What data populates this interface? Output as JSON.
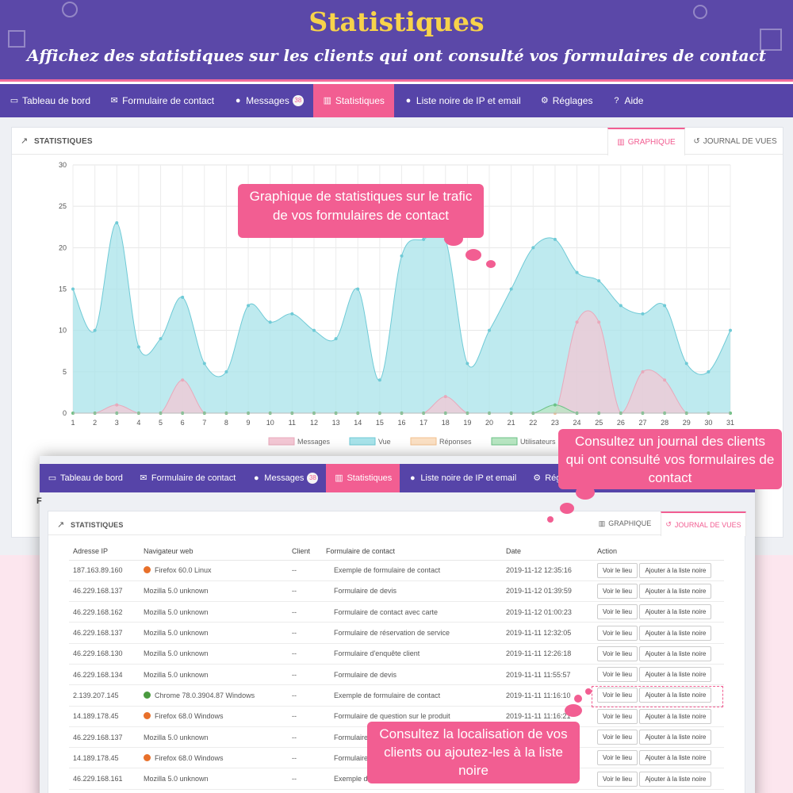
{
  "banner": {
    "title": "Statistiques",
    "subtitle": "Affichez des statistiques sur les clients qui ont consulté vos formulaires de contact"
  },
  "nav": {
    "items": [
      {
        "label": "Tableau de bord",
        "icon": "monitor-icon",
        "active": false
      },
      {
        "label": "Formulaire de contact",
        "icon": "envelope-icon",
        "active": false
      },
      {
        "label": "Messages",
        "icon": "comments-icon",
        "badge": "38",
        "active": false
      },
      {
        "label": "Statistiques",
        "icon": "bar-chart-icon",
        "active": true
      },
      {
        "label": "Liste noire de IP et email",
        "icon": "user-block-icon",
        "active": false
      },
      {
        "label": "Réglages",
        "icon": "gear-icon",
        "active": false
      },
      {
        "label": "Aide",
        "icon": "question-icon",
        "active": false
      }
    ]
  },
  "panel": {
    "title": "STATISTIQUES",
    "tabs": [
      {
        "label": "GRAPHIQUE",
        "icon": "bar-chart-icon"
      },
      {
        "label": "JOURNAL DE VUES",
        "icon": "history-icon"
      }
    ]
  },
  "chart_data": {
    "type": "area",
    "x": [
      1,
      2,
      3,
      4,
      5,
      6,
      7,
      8,
      9,
      10,
      11,
      12,
      13,
      14,
      15,
      16,
      17,
      18,
      19,
      20,
      21,
      22,
      23,
      24,
      25,
      26,
      27,
      28,
      29,
      30,
      31
    ],
    "ylim": [
      0,
      30
    ],
    "yticks": [
      0,
      5,
      10,
      15,
      20,
      25,
      30
    ],
    "grid": true,
    "legend_position": "bottom",
    "series": [
      {
        "name": "Messages",
        "color": "#f3c7d4",
        "values": [
          0,
          0,
          1,
          0,
          0,
          4,
          0,
          0,
          0,
          0,
          0,
          0,
          0,
          0,
          0,
          0,
          0,
          2,
          0,
          0,
          0,
          0,
          0,
          11,
          11,
          0,
          5,
          4,
          0,
          0,
          0
        ]
      },
      {
        "name": "Vue",
        "color": "#a8e3ea",
        "values": [
          15,
          10,
          23,
          8,
          9,
          14,
          6,
          5,
          13,
          11,
          12,
          10,
          9,
          15,
          4,
          19,
          21,
          21,
          6,
          10,
          15,
          20,
          21,
          17,
          16,
          13,
          12,
          13,
          6,
          5,
          10
        ]
      },
      {
        "name": "Réponses",
        "color": "#fbe0c4",
        "values": [
          0,
          0,
          0,
          0,
          0,
          0,
          0,
          0,
          0,
          0,
          0,
          0,
          0,
          0,
          0,
          0,
          0,
          0,
          0,
          0,
          0,
          0,
          0,
          0,
          0,
          0,
          0,
          0,
          0,
          0,
          0
        ]
      },
      {
        "name": "Utilisateurs",
        "color": "#b8e6c2",
        "values": [
          0,
          0,
          0,
          0,
          0,
          0,
          0,
          0,
          0,
          0,
          0,
          0,
          0,
          0,
          0,
          0,
          0,
          0,
          0,
          0,
          0,
          0,
          1,
          0,
          0,
          0,
          0,
          0,
          0,
          0,
          0
        ]
      }
    ]
  },
  "callouts": {
    "chart": "Graphique de statistiques sur le trafic de vos formulaires de contact",
    "journal": "Consultez un journal des clients qui ont consulté vos formulaires de contact",
    "location": "Consultez la localisation de vos clients ou ajoutez-les à la liste noire"
  },
  "nav2": {
    "items": [
      {
        "label": "Tableau de bord",
        "icon": "monitor-icon",
        "active": false
      },
      {
        "label": "Formulaire de contact",
        "icon": "envelope-icon",
        "active": false
      },
      {
        "label": "Messages",
        "icon": "comments-icon",
        "badge": "38",
        "active": false
      },
      {
        "label": "Statistiques",
        "icon": "bar-chart-icon",
        "active": true
      },
      {
        "label": "Liste noire de IP et email",
        "icon": "user-block-icon",
        "active": false
      },
      {
        "label": "Réglages",
        "icon": "gear-icon",
        "active": false
      }
    ]
  },
  "panel2": {
    "title": "STATISTIQUES",
    "tabs": [
      {
        "label": "GRAPHIQUE",
        "icon": "bar-chart-icon"
      },
      {
        "label": "JOURNAL DE VUES",
        "icon": "history-icon"
      }
    ]
  },
  "log": {
    "columns": [
      "Adresse IP",
      "Navigateur web",
      "Client",
      "Formulaire de contact",
      "Date",
      "Action"
    ],
    "view_button": "Voir le lieu",
    "blacklist_button": "Ajouter à la liste noire",
    "rows": [
      {
        "ip": "187.163.89.160",
        "browser": "Firefox 60.0 Linux",
        "browser_icon": "firefox-icon",
        "client": "--",
        "form": "Exemple de formulaire de contact",
        "date": "2019-11-12 12:35:16"
      },
      {
        "ip": "46.229.168.137",
        "browser": "Mozilla 5.0 unknown",
        "browser_icon": "",
        "client": "--",
        "form": "Formulaire de devis",
        "date": "2019-11-12 01:39:59"
      },
      {
        "ip": "46.229.168.162",
        "browser": "Mozilla 5.0 unknown",
        "browser_icon": "",
        "client": "--",
        "form": "Formulaire de contact avec carte",
        "date": "2019-11-12 01:00:23"
      },
      {
        "ip": "46.229.168.137",
        "browser": "Mozilla 5.0 unknown",
        "browser_icon": "",
        "client": "--",
        "form": "Formulaire de réservation de service",
        "date": "2019-11-11 12:32:05"
      },
      {
        "ip": "46.229.168.130",
        "browser": "Mozilla 5.0 unknown",
        "browser_icon": "",
        "client": "--",
        "form": "Formulaire d'enquête client",
        "date": "2019-11-11 12:26:18"
      },
      {
        "ip": "46.229.168.134",
        "browser": "Mozilla 5.0 unknown",
        "browser_icon": "",
        "client": "--",
        "form": "Formulaire de devis",
        "date": "2019-11-11 11:55:57"
      },
      {
        "ip": "2.139.207.145",
        "browser": "Chrome 78.0.3904.87 Windows",
        "browser_icon": "chrome-icon",
        "client": "--",
        "form": "Exemple de formulaire de contact",
        "date": "2019-11-11 11:16:10"
      },
      {
        "ip": "14.189.178.45",
        "browser": "Firefox 68.0 Windows",
        "browser_icon": "firefox-icon",
        "client": "--",
        "form": "Formulaire de question sur le produit",
        "date": "2019-11-11 11:16:21"
      },
      {
        "ip": "46.229.168.137",
        "browser": "Mozilla 5.0 unknown",
        "browser_icon": "",
        "client": "--",
        "form": "Formulaire de devis",
        "date": "2019-11-11 11:02:15"
      },
      {
        "ip": "14.189.178.45",
        "browser": "Firefox 68.0 Windows",
        "browser_icon": "firefox-icon",
        "client": "--",
        "form": "Formulaire de contact",
        "date": "2019-11-11 10:52:41"
      },
      {
        "ip": "46.229.168.161",
        "browser": "Mozilla 5.0 unknown",
        "browser_icon": "",
        "client": "--",
        "form": "Exemple de formulaire de contact",
        "date": "2019-11-11 10:40:03"
      }
    ]
  }
}
